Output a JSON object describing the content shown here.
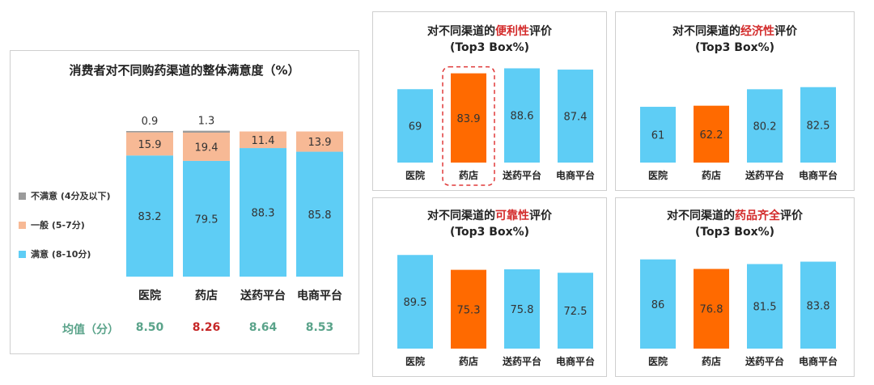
{
  "colors": {
    "satisfied": "#5ecdf5",
    "normal": "#f7b995",
    "unsatisfied": "#9b9b9b",
    "pharmacy": "#ff6a00",
    "mean_label": "#5aa38a",
    "mean_normal": "#5aa38a",
    "mean_highlight": "#c62828"
  },
  "chart_data": [
    {
      "type": "bar",
      "stacked": true,
      "title": "消费者对不同购药渠道的整体满意度（%）",
      "categories": [
        "医院",
        "药店",
        "送药平台",
        "电商平台"
      ],
      "series": [
        {
          "name": "满意 (8-10分)",
          "values": [
            83.2,
            79.5,
            88.3,
            85.8
          ]
        },
        {
          "name": "一般 (5-7分)",
          "values": [
            15.9,
            19.4,
            11.4,
            13.9
          ]
        },
        {
          "name": "不满意 (4分及以下)",
          "values": [
            0.9,
            1.3,
            null,
            null
          ]
        }
      ],
      "ylim": [
        0,
        100
      ],
      "legend_position": "left",
      "mean": {
        "label": "均值（分）",
        "values": [
          "8.50",
          "8.26",
          "8.64",
          "8.53"
        ]
      }
    },
    {
      "type": "bar",
      "title_parts": [
        "对不同渠道的",
        "便利性",
        "评价"
      ],
      "subtitle": "(Top3 Box%)",
      "categories": [
        "医院",
        "药店",
        "送药平台",
        "电商平台"
      ],
      "values": [
        69,
        83.9,
        88.6,
        87.4
      ],
      "value_labels": [
        "69",
        "83.9",
        "88.6",
        "87.4"
      ],
      "highlight_index": 1,
      "ylim": [
        0,
        92
      ]
    },
    {
      "type": "bar",
      "title_parts": [
        "对不同渠道的",
        "经济性",
        "评价"
      ],
      "subtitle": "(Top3 Box%)",
      "categories": [
        "医院",
        "药店",
        "送药平台",
        "电商平台"
      ],
      "values": [
        61,
        62.2,
        80.2,
        82.5
      ],
      "value_labels": [
        "61",
        "62.2",
        "80.2",
        "82.5"
      ],
      "highlight_index": 1,
      "ylim": [
        0,
        92
      ]
    },
    {
      "type": "bar",
      "title_parts": [
        "对不同渠道的",
        "可靠性",
        "评价"
      ],
      "subtitle": "(Top3 Box%)",
      "categories": [
        "医院",
        "药店",
        "送药平台",
        "电商平台"
      ],
      "values": [
        89.5,
        75.3,
        75.8,
        72.5
      ],
      "value_labels": [
        "89.5",
        "75.3",
        "75.8",
        "72.5"
      ],
      "highlight_index": 1,
      "ylim": [
        0,
        92
      ]
    },
    {
      "type": "bar",
      "title_parts": [
        "对不同渠道的",
        "药品齐全",
        "评价"
      ],
      "subtitle": "(Top3 Box%)",
      "categories": [
        "医院",
        "药店",
        "送药平台",
        "电商平台"
      ],
      "values": [
        86,
        76.8,
        81.5,
        83.8
      ],
      "value_labels": [
        "86",
        "76.8",
        "81.5",
        "83.8"
      ],
      "highlight_index": 1,
      "ylim": [
        0,
        92
      ]
    }
  ]
}
